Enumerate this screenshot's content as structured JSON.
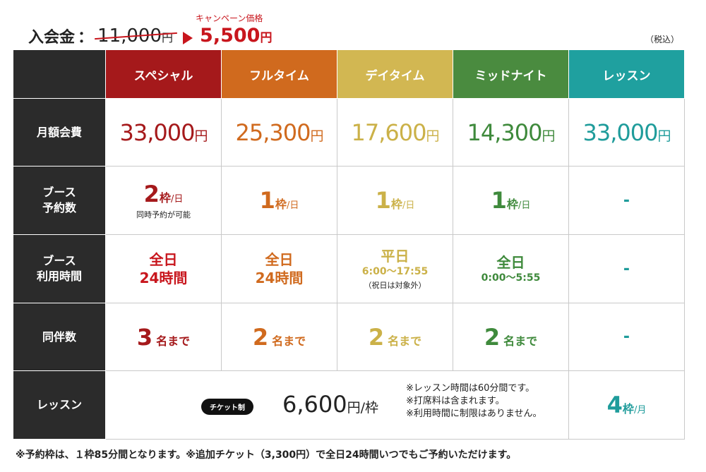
{
  "header": {
    "enrollment_label": "入会金",
    "colon": "：",
    "old_price": "11,000",
    "old_price_unit": "円",
    "campaign_label": "キャンペーン価格",
    "new_price": "5,500",
    "new_price_unit": "円",
    "tax_note": "（税込）"
  },
  "plans": [
    "スペシャル",
    "フルタイム",
    "デイタイム",
    "ミッドナイト",
    "レッスン"
  ],
  "colors": {
    "special": "#a5191b",
    "fulltime": "#d06a1e",
    "daytime": "#d2b752",
    "midnight": "#4a8b3f",
    "lesson": "#1fa09f",
    "row_header": "#2b2b2b",
    "accent_red": "#c8161d"
  },
  "rows": {
    "fee": {
      "label": "月額会費",
      "values": [
        "33,000",
        "25,300",
        "17,600",
        "14,300",
        "33,000"
      ],
      "unit": "円"
    },
    "booth_reservations": {
      "label_line1": "ブース",
      "label_line2": "予約数",
      "values": [
        "2",
        "1",
        "1",
        "1"
      ],
      "unit": "枠",
      "per": "/日",
      "special_note": "同時予約が可能",
      "lesson_value": "-"
    },
    "booth_time": {
      "label_line1": "ブース",
      "label_line2": "利用時間",
      "special_line1": "全日",
      "special_line2": "24時間",
      "fulltime_line1": "全日",
      "fulltime_line2": "24時間",
      "daytime_line1": "平日",
      "daytime_line2": "6:00〜17:55",
      "daytime_note": "（祝日は対象外）",
      "midnight_line1": "全日",
      "midnight_line2": "0:00〜5:55",
      "lesson_value": "-"
    },
    "companions": {
      "label": "同伴数",
      "values": [
        "3",
        "2",
        "2",
        "2"
      ],
      "unit": "名まで",
      "lesson_value": "-"
    },
    "lesson": {
      "label": "レッスン",
      "ticket_badge": "チケット制",
      "price": "6,600",
      "price_unit": "円/枠",
      "notes": [
        "※レッスン時間は60分間です。",
        "※打席料は含まれます。",
        "※利用時間に制限はありません。"
      ],
      "lesson_plan_value": "4",
      "lesson_plan_unit": "枠",
      "lesson_plan_per": "/月"
    }
  },
  "footnote": "※予約枠は、１枠85分間となります。※追加チケット（3,300円）で全日24時間いつでもご予約いただけます。"
}
